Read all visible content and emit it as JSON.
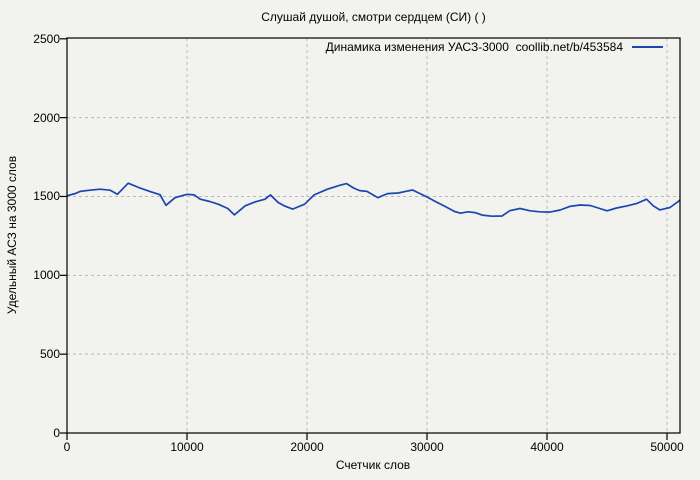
{
  "window": {
    "background": "#f2f2ef"
  },
  "chart_data": {
    "type": "line",
    "title": "Слушай душой, смотри сердцем (СИ) ( )",
    "xlabel": "Счетчик слов",
    "ylabel": "Удельный АСЗ на 3000 слов",
    "xlim": [
      0,
      51083
    ],
    "ylim": [
      0,
      2500
    ],
    "x_ticks": [
      0,
      10000,
      20000,
      30000,
      40000,
      50000
    ],
    "y_ticks": [
      0,
      500,
      1000,
      1500,
      2000,
      2500
    ],
    "grid": true,
    "grid_color": "#b9b9b9",
    "border_color": "#000000",
    "legend_position": "top-right",
    "series": [
      {
        "name": "Динамика изменения УАСЗ-3000  coollib.net/b/453584",
        "color": "#1a47ae",
        "points": [
          [
            0,
            1504
          ],
          [
            700,
            1519
          ],
          [
            1100,
            1532
          ],
          [
            1900,
            1540
          ],
          [
            2750,
            1546
          ],
          [
            3600,
            1540
          ],
          [
            4200,
            1514
          ],
          [
            5100,
            1584
          ],
          [
            6100,
            1553
          ],
          [
            6900,
            1532
          ],
          [
            7750,
            1511
          ],
          [
            8250,
            1444
          ],
          [
            9000,
            1492
          ],
          [
            10000,
            1514
          ],
          [
            10600,
            1510
          ],
          [
            11100,
            1483
          ],
          [
            11900,
            1468
          ],
          [
            12600,
            1451
          ],
          [
            13400,
            1424
          ],
          [
            13950,
            1383
          ],
          [
            14850,
            1441
          ],
          [
            15700,
            1466
          ],
          [
            16500,
            1483
          ],
          [
            16950,
            1510
          ],
          [
            17600,
            1462
          ],
          [
            18100,
            1441
          ],
          [
            18800,
            1420
          ],
          [
            19800,
            1451
          ],
          [
            20600,
            1510
          ],
          [
            21700,
            1546
          ],
          [
            22800,
            1572
          ],
          [
            23300,
            1582
          ],
          [
            23900,
            1553
          ],
          [
            24400,
            1537
          ],
          [
            25000,
            1532
          ],
          [
            25900,
            1492
          ],
          [
            26700,
            1518
          ],
          [
            27600,
            1522
          ],
          [
            28200,
            1532
          ],
          [
            28800,
            1541
          ],
          [
            29400,
            1519
          ],
          [
            30000,
            1497
          ],
          [
            30700,
            1468
          ],
          [
            31500,
            1437
          ],
          [
            32300,
            1405
          ],
          [
            32800,
            1394
          ],
          [
            33400,
            1403
          ],
          [
            34000,
            1398
          ],
          [
            34600,
            1382
          ],
          [
            35400,
            1375
          ],
          [
            36250,
            1376
          ],
          [
            36900,
            1410
          ],
          [
            37750,
            1424
          ],
          [
            38600,
            1409
          ],
          [
            39400,
            1403
          ],
          [
            40250,
            1401
          ],
          [
            41100,
            1414
          ],
          [
            41900,
            1437
          ],
          [
            42750,
            1446
          ],
          [
            43600,
            1443
          ],
          [
            44400,
            1424
          ],
          [
            45000,
            1409
          ],
          [
            45800,
            1427
          ],
          [
            46700,
            1441
          ],
          [
            47500,
            1456
          ],
          [
            48300,
            1483
          ],
          [
            48850,
            1441
          ],
          [
            49400,
            1415
          ],
          [
            50250,
            1430
          ],
          [
            50900,
            1466
          ],
          [
            51080,
            1477
          ]
        ]
      }
    ]
  }
}
